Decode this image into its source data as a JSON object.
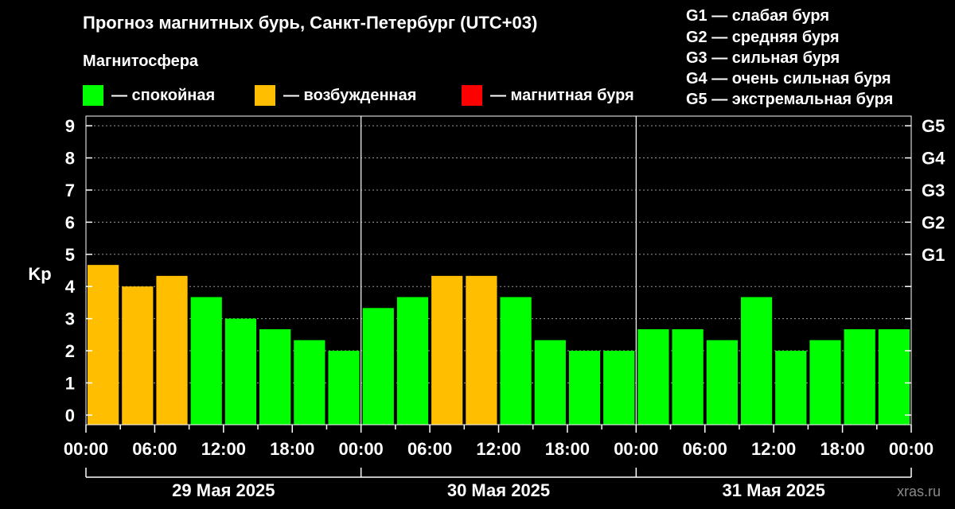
{
  "header": {
    "title": "Прогноз магнитных бурь, Санкт-Петербург (UTC+03)",
    "legend_title": "Магнитосфера",
    "legend": [
      {
        "label": "— спокойная",
        "color": "#00ff00"
      },
      {
        "label": "— возбужденная",
        "color": "#ffbf00"
      },
      {
        "label": "— магнитная буря",
        "color": "#ff0000"
      }
    ],
    "g_legend": [
      "G1 — слабая буря",
      "G2 — средняя буря",
      "G3 — сильная буря",
      "G4 — очень сильная буря",
      "G5 — экстремальная буря"
    ]
  },
  "watermark": "xras.ru",
  "chart_data": {
    "type": "bar",
    "ylabel": "Kp",
    "ylim": [
      -0.3,
      9.3
    ],
    "yticks": [
      0,
      1,
      2,
      3,
      4,
      5,
      6,
      7,
      8,
      9
    ],
    "y2ticks": [
      {
        "value": 5,
        "label": "G1"
      },
      {
        "value": 6,
        "label": "G2"
      },
      {
        "value": 7,
        "label": "G3"
      },
      {
        "value": 8,
        "label": "G4"
      },
      {
        "value": 9,
        "label": "G5"
      }
    ],
    "xtick_labels": [
      "00:00",
      "06:00",
      "12:00",
      "18:00",
      "00:00",
      "06:00",
      "12:00",
      "18:00",
      "00:00",
      "06:00",
      "12:00",
      "18:00",
      "00:00"
    ],
    "days": [
      "29 Мая 2025",
      "30 Мая 2025",
      "31 Мая 2025"
    ],
    "grid": true,
    "values": [
      4.67,
      4.0,
      4.33,
      3.67,
      3.0,
      2.67,
      2.33,
      2.0,
      3.33,
      3.67,
      4.33,
      4.33,
      3.67,
      2.33,
      2.0,
      2.0,
      2.67,
      2.67,
      2.33,
      3.67,
      2.0,
      2.33,
      2.67,
      2.67
    ],
    "status": [
      "excited",
      "excited",
      "excited",
      "quiet",
      "quiet",
      "quiet",
      "quiet",
      "quiet",
      "quiet",
      "quiet",
      "excited",
      "excited",
      "quiet",
      "quiet",
      "quiet",
      "quiet",
      "quiet",
      "quiet",
      "quiet",
      "quiet",
      "quiet",
      "quiet",
      "quiet",
      "quiet"
    ],
    "colors": {
      "quiet": "#00ff00",
      "excited": "#ffbf00",
      "storm": "#ff0000"
    }
  }
}
